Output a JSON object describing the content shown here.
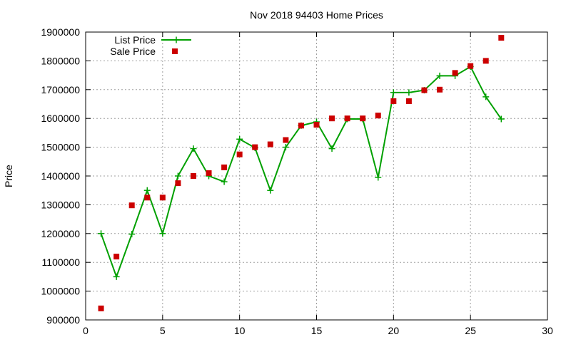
{
  "chart_data": {
    "type": "line",
    "title": "Nov 2018 94403 Home Prices",
    "xlabel": "",
    "ylabel": "Price",
    "xlim": [
      0,
      30
    ],
    "ylim": [
      900000,
      1900000
    ],
    "x_ticks": [
      0,
      5,
      10,
      15,
      20,
      25,
      30
    ],
    "y_ticks": [
      900000,
      1000000,
      1100000,
      1200000,
      1300000,
      1400000,
      1500000,
      1600000,
      1700000,
      1800000,
      1900000
    ],
    "grid": true,
    "legend_position": "top-left",
    "series": [
      {
        "name": "List Price",
        "style": "line-with-plus-markers",
        "color": "#00a000",
        "points": [
          [
            1,
            1200000
          ],
          [
            2,
            1050000
          ],
          [
            3,
            1198000
          ],
          [
            4,
            1350000
          ],
          [
            5,
            1200000
          ],
          [
            6,
            1400000
          ],
          [
            7,
            1495000
          ],
          [
            8,
            1400000
          ],
          [
            9,
            1380000
          ],
          [
            10,
            1528000
          ],
          [
            11,
            1498000
          ],
          [
            12,
            1350000
          ],
          [
            13,
            1500000
          ],
          [
            14,
            1575000
          ],
          [
            15,
            1588000
          ],
          [
            16,
            1495000
          ],
          [
            17,
            1598000
          ],
          [
            18,
            1598000
          ],
          [
            19,
            1395000
          ],
          [
            20,
            1690000
          ],
          [
            21,
            1690000
          ],
          [
            22,
            1698000
          ],
          [
            23,
            1748000
          ],
          [
            24,
            1748000
          ],
          [
            25,
            1780000
          ],
          [
            26,
            1675000
          ],
          [
            27,
            1598000
          ]
        ]
      },
      {
        "name": "Sale Price",
        "style": "square-markers",
        "color": "#cc0000",
        "points": [
          [
            1,
            940000
          ],
          [
            2,
            1120000
          ],
          [
            3,
            1298000
          ],
          [
            4,
            1325000
          ],
          [
            5,
            1325000
          ],
          [
            6,
            1375000
          ],
          [
            7,
            1400000
          ],
          [
            8,
            1410000
          ],
          [
            9,
            1430000
          ],
          [
            10,
            1475000
          ],
          [
            11,
            1500000
          ],
          [
            12,
            1510000
          ],
          [
            13,
            1525000
          ],
          [
            14,
            1575000
          ],
          [
            15,
            1578000
          ],
          [
            16,
            1600000
          ],
          [
            17,
            1600000
          ],
          [
            18,
            1600000
          ],
          [
            19,
            1610000
          ],
          [
            20,
            1660000
          ],
          [
            21,
            1660000
          ],
          [
            22,
            1698000
          ],
          [
            23,
            1700000
          ],
          [
            24,
            1758000
          ],
          [
            25,
            1782000
          ],
          [
            26,
            1800000
          ],
          [
            27,
            1880000
          ]
        ]
      }
    ]
  }
}
